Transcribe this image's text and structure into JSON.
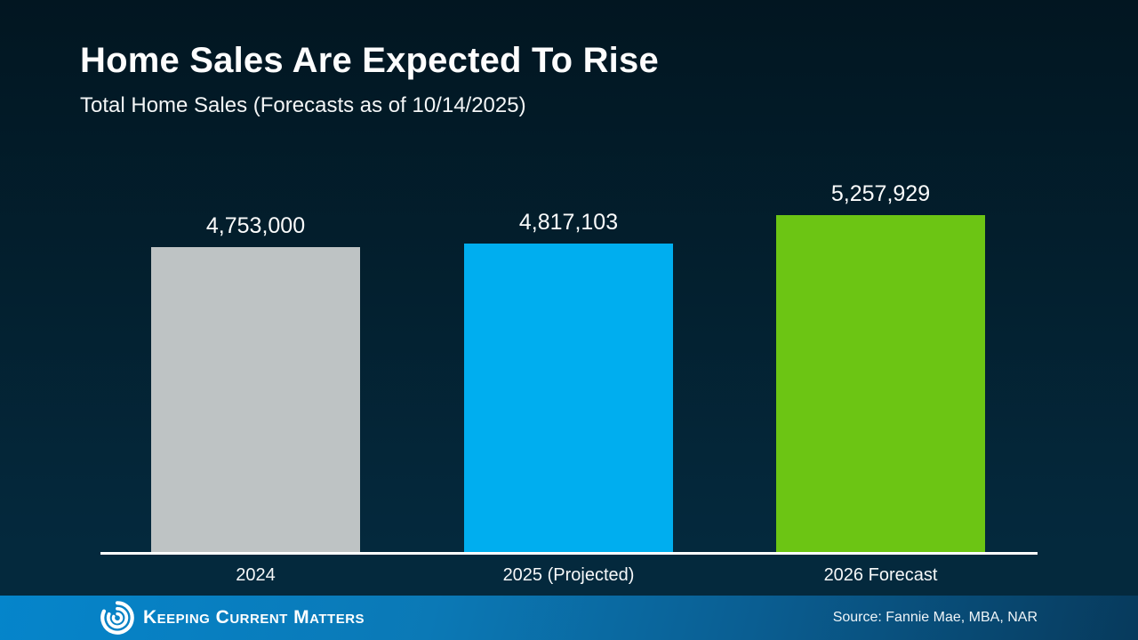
{
  "slide": {
    "title": "Home Sales Are Expected To Rise",
    "subtitle": "Total Home Sales (Forecasts as of 10/14/2025)"
  },
  "chart_data": {
    "type": "bar",
    "title": "Home Sales Are Expected To Rise",
    "subtitle": "Total Home Sales (Forecasts as of 10/14/2025)",
    "categories": [
      "2024",
      "2025 (Projected)",
      "2026 Forecast"
    ],
    "values": [
      4753000,
      4817103,
      5257929
    ],
    "value_labels": [
      "4,753,000",
      "4,817,103",
      "5,257,929"
    ],
    "bar_colors": [
      "#bec3c4",
      "#00aeef",
      "#6cc514"
    ],
    "ylim": [
      0,
      5257929
    ],
    "grid": false,
    "legend": "none",
    "baseline_color": "#ffffff",
    "label_color": "#ffffff"
  },
  "footer": {
    "brand_name": "Keeping Current Matters",
    "logo_icon": "kcm-spiral-icon",
    "source": "Source: Fannie Mae, MBA, NAR",
    "background_left": "#0585cb",
    "background_right": "#073a5c"
  },
  "colors": {
    "background_top": "#021621",
    "background_bottom": "#04293d",
    "text": "#ffffff"
  }
}
